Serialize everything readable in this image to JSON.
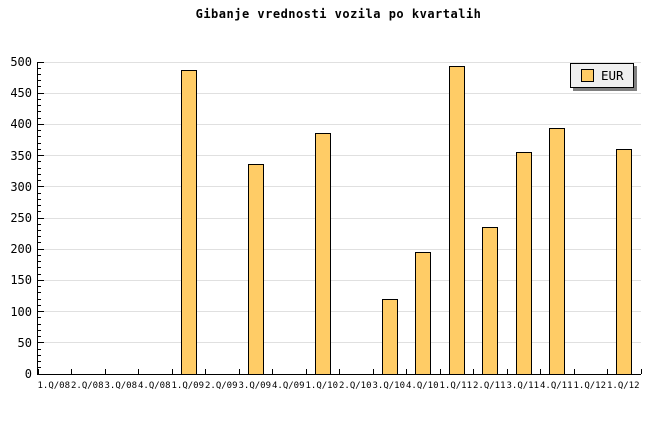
{
  "chart_data": {
    "type": "bar",
    "title": "Gibanje vrednosti vozila po kvartalih",
    "categories": [
      "1.Q/08",
      "2.Q/08",
      "3.Q/08",
      "4.Q/08",
      "1.Q/09",
      "2.Q/09",
      "3.Q/09",
      "4.Q/09",
      "1.Q/10",
      "2.Q/10",
      "3.Q/10",
      "4.Q/10",
      "1.Q/11",
      "2.Q/11",
      "3.Q/11",
      "4.Q/11",
      "1.Q/12",
      "1.Q/12"
    ],
    "series": [
      {
        "name": "EUR",
        "values": [
          null,
          null,
          null,
          null,
          488,
          null,
          336,
          null,
          387,
          null,
          121,
          195,
          494,
          235,
          355,
          394,
          null,
          361
        ]
      }
    ],
    "xlabel": "",
    "ylabel": "",
    "ylim": [
      0,
      500
    ],
    "ytick_step": 50,
    "yminor_tick_step": 10,
    "grid": "horizontal-on",
    "legend_position": "top-right",
    "colors": {
      "bar_fill": "#FFCC66",
      "bar_border": "#000000",
      "gridline": "#E0E0E0",
      "axis": "#000000",
      "legend_bg": "#EFEFEF",
      "legend_shadow": "#808080",
      "background": "#FFFFFF"
    }
  }
}
